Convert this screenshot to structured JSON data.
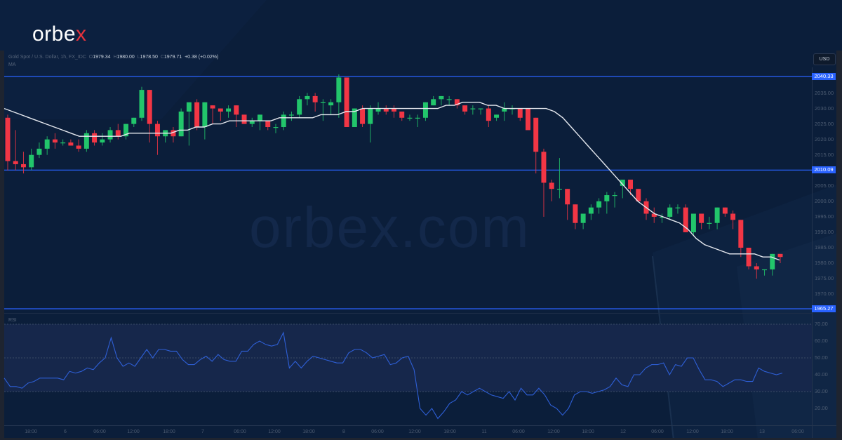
{
  "brand": {
    "name_main": "orbe",
    "name_accent": "x",
    "watermark": "orbex.com",
    "accent_color": "#e5323c"
  },
  "header": {
    "symbol": "Gold Spot / U.S. Dollar, 1h, FX_IDC",
    "open_label": "O",
    "open": "1979.34",
    "high_label": "H",
    "high": "1980.00",
    "low_label": "L",
    "low": "1978.50",
    "close_label": "C",
    "close": "1979.71",
    "change": "+0.38 (+0.02%)",
    "ma_label": "MA",
    "currency_button": "USD"
  },
  "price_axis": {
    "ticks": [
      "2035.00",
      "2030.00",
      "2025.00",
      "2020.00",
      "2015.00",
      "2005.00",
      "2000.00",
      "1995.00",
      "1990.00",
      "1985.00",
      "1980.00",
      "1975.00",
      "1970.00"
    ],
    "levels": [
      {
        "label": "2040.33",
        "value": 2040.33
      },
      {
        "label": "2010.09",
        "value": 2010.09
      },
      {
        "label": "1965.27",
        "value": 1965.27
      }
    ]
  },
  "rsi": {
    "label": "RSI",
    "ticks": [
      "70.00",
      "60.00",
      "50.00",
      "40.00",
      "30.00",
      "20.00"
    ]
  },
  "time_axis": {
    "ticks": [
      "18:00",
      "6",
      "06:00",
      "12:00",
      "18:00",
      "7",
      "06:00",
      "12:00",
      "18:00",
      "8",
      "06:00",
      "12:00",
      "18:00",
      "11",
      "06:00",
      "12:00",
      "18:00",
      "12",
      "06:00",
      "12:00",
      "18:00",
      "13",
      "06:00"
    ]
  },
  "colors": {
    "up": "#22c56b",
    "down": "#f23645",
    "ma": "#e6e9ef",
    "rsi": "#2e5fd6",
    "level_line": "#2962ff"
  },
  "chart_data": [
    {
      "type": "candlestick",
      "title": "Gold Spot / U.S. Dollar, 1h, FX_IDC",
      "ylabel": "USD",
      "ylim": [
        1963,
        2045
      ],
      "x_ticks": [
        "18:00",
        "6",
        "06:00",
        "12:00",
        "18:00",
        "7",
        "06:00",
        "12:00",
        "18:00",
        "8",
        "06:00",
        "12:00",
        "18:00",
        "11",
        "06:00",
        "12:00",
        "18:00",
        "12",
        "06:00",
        "12:00",
        "18:00",
        "13",
        "06:00"
      ],
      "horizontal_levels": [
        2040.33,
        2010.09,
        1965.27
      ],
      "last_ohlc": {
        "open": 1979.34,
        "high": 1980.0,
        "low": 1978.5,
        "close": 1979.71,
        "change": 0.38,
        "change_pct": 0.02
      },
      "candles": [
        [
          2027,
          2028,
          2010,
          2013
        ],
        [
          2013,
          2023,
          2010,
          2012
        ],
        [
          2012,
          2016,
          2009,
          2011
        ],
        [
          2011,
          2017,
          2010,
          2015
        ],
        [
          2015,
          2019,
          2014,
          2017
        ],
        [
          2017,
          2021,
          2015,
          2020
        ],
        [
          2020,
          2022,
          2017,
          2019
        ],
        [
          2019,
          2020,
          2018,
          2019
        ],
        [
          2019,
          2020,
          2018,
          2018
        ],
        [
          2018,
          2020,
          2016,
          2017
        ],
        [
          2017,
          2023,
          2016,
          2022
        ],
        [
          2022,
          2023,
          2018,
          2019
        ],
        [
          2019,
          2022,
          2018,
          2020
        ],
        [
          2020,
          2024,
          2019,
          2023
        ],
        [
          2023,
          2025,
          2020,
          2021
        ],
        [
          2021,
          2025,
          2020,
          2025
        ],
        [
          2025,
          2027,
          2024,
          2027
        ],
        [
          2027,
          2037,
          2026,
          2036
        ],
        [
          2036,
          2036,
          2019,
          2025
        ],
        [
          2025,
          2026,
          2015,
          2021
        ],
        [
          2021,
          2023,
          2019,
          2023
        ],
        [
          2023,
          2024,
          2019,
          2021
        ],
        [
          2021,
          2030,
          2021,
          2029
        ],
        [
          2029,
          2032,
          2018,
          2032
        ],
        [
          2032,
          2033,
          2023,
          2024
        ],
        [
          2024,
          2032,
          2020,
          2032
        ],
        [
          2031,
          2031,
          2025,
          2030
        ],
        [
          2030,
          2030,
          2026,
          2029
        ],
        [
          2029,
          2031,
          2027,
          2030
        ],
        [
          2031,
          2031,
          2024,
          2028
        ],
        [
          2028,
          2028,
          2025,
          2025
        ],
        [
          2025,
          2027,
          2024,
          2026
        ],
        [
          2026,
          2028,
          2023,
          2028
        ],
        [
          2026,
          2026,
          2023,
          2024
        ],
        [
          2024,
          2025,
          2022,
          2024
        ],
        [
          2024,
          2029,
          2023,
          2028
        ],
        [
          2028,
          2029,
          2026,
          2028
        ],
        [
          2028,
          2034,
          2027,
          2033
        ],
        [
          2033,
          2035,
          2031,
          2034
        ],
        [
          2034,
          2035,
          2029,
          2032
        ],
        [
          2032,
          2033,
          2026,
          2032
        ],
        [
          2031,
          2033,
          2028,
          2032
        ],
        [
          2032,
          2041,
          2027,
          2040
        ],
        [
          2040,
          2040,
          2024,
          2024
        ],
        [
          2024,
          2030,
          2024,
          2030
        ],
        [
          2030,
          2031,
          2024,
          2025
        ],
        [
          2025,
          2031,
          2019,
          2030
        ],
        [
          2029,
          2032,
          2028,
          2030
        ],
        [
          2030,
          2031,
          2028,
          2029
        ],
        [
          2030,
          2031,
          2027,
          2029
        ],
        [
          2029,
          2029,
          2026,
          2027
        ],
        [
          2027,
          2028,
          2026,
          2027
        ],
        [
          2027,
          2028,
          2024,
          2027
        ],
        [
          2027,
          2032,
          2026,
          2032
        ],
        [
          2031,
          2034,
          2031,
          2033
        ],
        [
          2033,
          2034,
          2031,
          2034
        ],
        [
          2033,
          2034,
          2031,
          2033
        ],
        [
          2033,
          2033,
          2030,
          2031
        ],
        [
          2031,
          2031,
          2028,
          2029
        ],
        [
          2030,
          2031,
          2028,
          2030
        ],
        [
          2030,
          2030,
          2028,
          2030
        ],
        [
          2030,
          2031,
          2024,
          2026
        ],
        [
          2027,
          2028,
          2026,
          2028
        ],
        [
          2029,
          2032,
          2026,
          2030
        ],
        [
          2030,
          2031,
          2028,
          2030
        ],
        [
          2030,
          2030,
          2026,
          2027
        ],
        [
          2030,
          2030,
          2024,
          2023
        ],
        [
          2027,
          2027,
          2009,
          2016
        ],
        [
          2016,
          2017,
          1995,
          2006
        ],
        [
          2006,
          2007,
          2000,
          2004
        ],
        [
          2004,
          2014,
          2001,
          2004
        ],
        [
          2004,
          2004,
          1994,
          1999
        ],
        [
          1999,
          1999,
          1991,
          1993
        ],
        [
          1993,
          1996,
          1991,
          1996
        ],
        [
          1996,
          1999,
          1994,
          1998
        ],
        [
          1998,
          2001,
          1996,
          2000
        ],
        [
          2000,
          2003,
          1996,
          2002
        ],
        [
          2002,
          2003,
          1998,
          2002
        ],
        [
          2005,
          2007,
          2001,
          2007
        ],
        [
          2007,
          2007,
          2002,
          2004
        ],
        [
          2004,
          2004,
          2000,
          2000
        ],
        [
          2000,
          2001,
          1994,
          1996
        ],
        [
          1996,
          1998,
          1993,
          1995
        ],
        [
          1995,
          1996,
          1993,
          1995
        ],
        [
          1995,
          1999,
          1994,
          1998
        ],
        [
          1998,
          1999,
          1996,
          1998
        ],
        [
          1998,
          1999,
          1990,
          1990
        ],
        [
          1990,
          1996,
          1989,
          1996
        ],
        [
          1996,
          1996,
          1991,
          1993
        ],
        [
          1993,
          1995,
          1991,
          1993
        ],
        [
          1993,
          1998,
          1991,
          1998
        ],
        [
          1998,
          1998,
          1995,
          1996
        ],
        [
          1996,
          1997,
          1991,
          1994
        ],
        [
          1994,
          1994,
          1982,
          1985
        ],
        [
          1985,
          1985,
          1978,
          1979
        ],
        [
          1979,
          1980,
          1975,
          1978
        ],
        [
          1978,
          1978,
          1976,
          1978
        ],
        [
          1978,
          1983,
          1976,
          1983
        ],
        [
          1983,
          1983,
          1980,
          1982
        ]
      ],
      "ma_line": [
        2030,
        2029,
        2028,
        2027,
        2026,
        2025,
        2024,
        2023,
        2022,
        2021,
        2021,
        2021,
        2021,
        2021,
        2021,
        2022,
        2022,
        2022,
        2022,
        2022,
        2022,
        2023,
        2023,
        2024,
        2024,
        2025,
        2025,
        2026,
        2026,
        2026,
        2026,
        2026,
        2026,
        2027,
        2027,
        2027,
        2027,
        2027,
        2028,
        2028,
        2028,
        2029,
        2029,
        2030,
        2030,
        2030,
        2030,
        2030,
        2030,
        2030,
        2030,
        2030,
        2030,
        2031,
        2031,
        2032,
        2032,
        2032,
        2031,
        2031,
        2030,
        2030,
        2030,
        2030,
        2030,
        2030,
        2029,
        2027,
        2024,
        2021,
        2018,
        2015,
        2012,
        2009,
        2006,
        2003,
        2000,
        1998,
        1996,
        1995,
        1994,
        1993,
        1991,
        1988,
        1986,
        1985,
        1984,
        1983,
        1983,
        1983,
        1983,
        1982,
        1982,
        1981
      ],
      "ohlc_order": [
        "open",
        "high",
        "low",
        "close"
      ]
    },
    {
      "type": "line",
      "title": "RSI",
      "ylim": [
        15,
        75
      ],
      "bands": [
        30,
        50,
        70
      ],
      "values": [
        38,
        33,
        33,
        32,
        35,
        36,
        38,
        38,
        38,
        38,
        37,
        42,
        41,
        42,
        44,
        43,
        47,
        50,
        62,
        50,
        45,
        47,
        45,
        50,
        55,
        50,
        55,
        55,
        54,
        54,
        49,
        46,
        46,
        49,
        51,
        48,
        52,
        49,
        48,
        48,
        54,
        54,
        58,
        60,
        58,
        57,
        58,
        65,
        44,
        48,
        44,
        48,
        51,
        50,
        49,
        48,
        47,
        47,
        53,
        55,
        55,
        53,
        50,
        51,
        52,
        46,
        47,
        50,
        51,
        43,
        20,
        16,
        20,
        14,
        18,
        23,
        25,
        30,
        28,
        30,
        32,
        30,
        28,
        27,
        26,
        30,
        25,
        32,
        28,
        28,
        32,
        28,
        22,
        20,
        16,
        20,
        28,
        30,
        30,
        29,
        30,
        31,
        33,
        38,
        34,
        33,
        40,
        40,
        44,
        46,
        46,
        47,
        40,
        46,
        45,
        50,
        50,
        43,
        37,
        37,
        36,
        33,
        35,
        37,
        37,
        36,
        36,
        44,
        42,
        41,
        40,
        41
      ],
      "values_note": "approximate hourly RSI read from pane"
    }
  ]
}
